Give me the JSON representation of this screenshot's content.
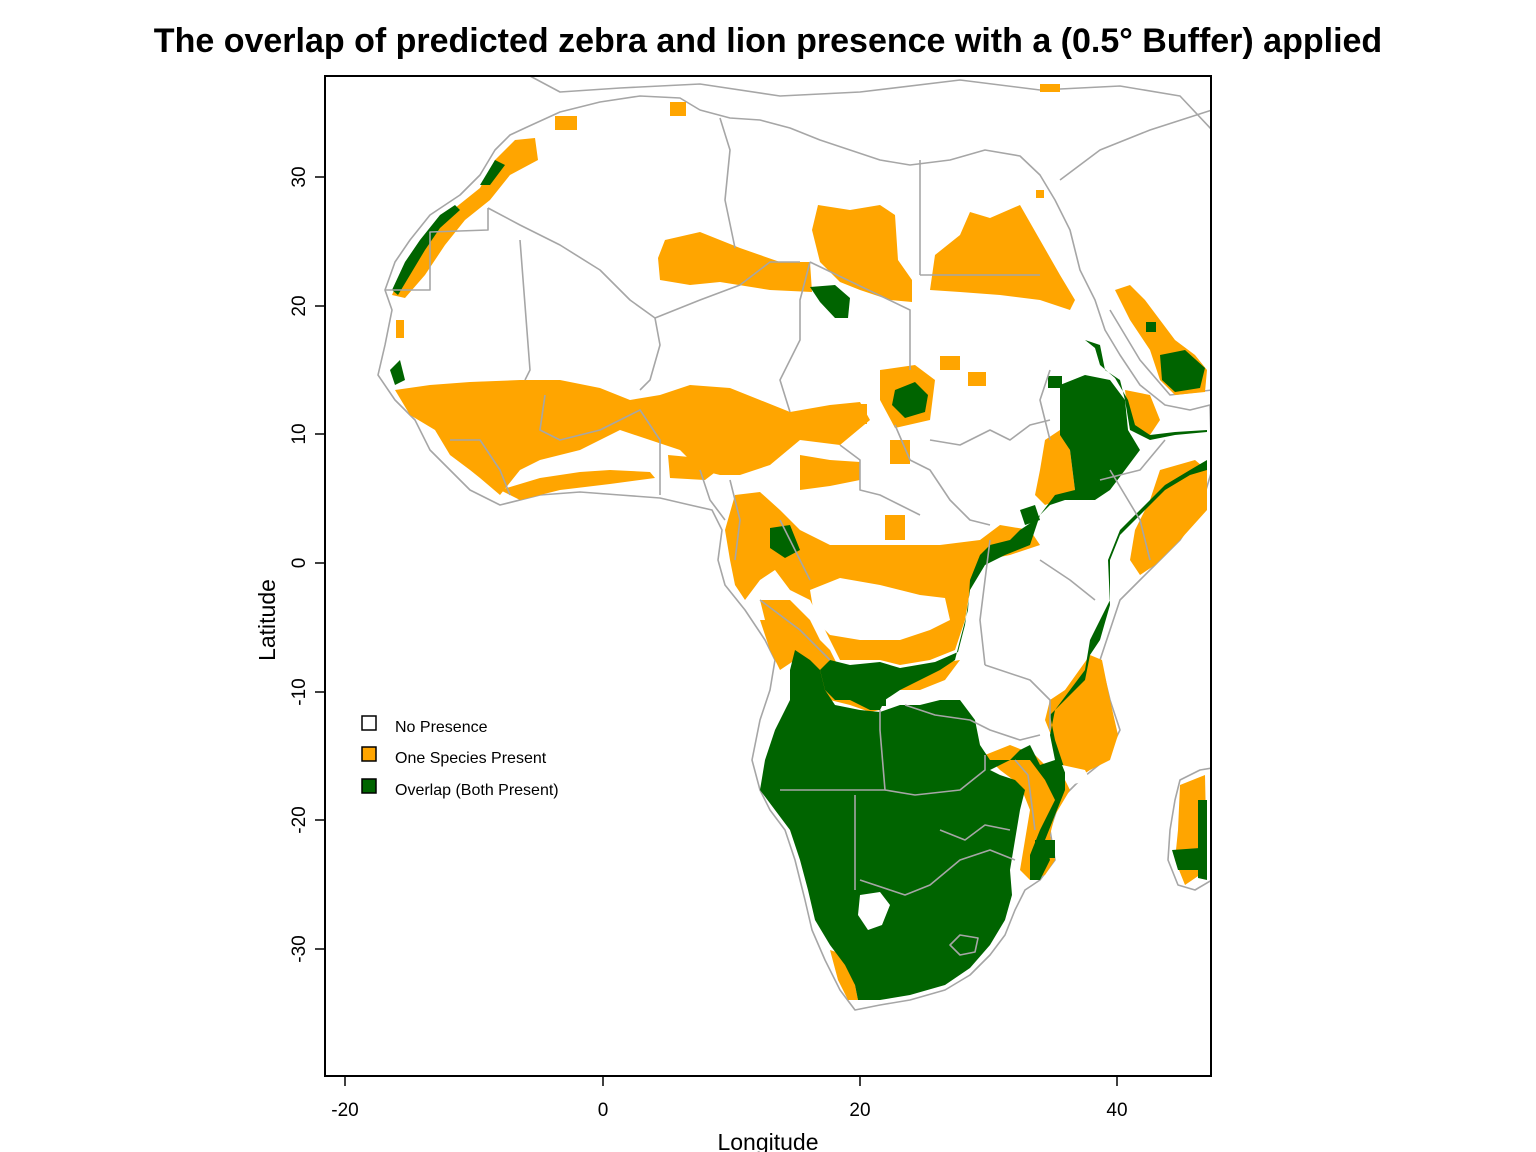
{
  "title": "The overlap of predicted zebra and lion presence with a (0.5° Buffer) applied",
  "axes": {
    "xlabel": "Longitude",
    "ylabel": "Latitude",
    "xticks": [
      "-20",
      "0",
      "20",
      "40"
    ],
    "yticks": [
      "30",
      "20",
      "10",
      "0",
      "-10",
      "-20",
      "-30"
    ]
  },
  "legend": {
    "items": [
      {
        "label": "No Presence",
        "color": "#ffffff"
      },
      {
        "label": "One Species Present",
        "color": "#ffa500"
      },
      {
        "label": "Overlap (Both Present)",
        "color": "#006400"
      }
    ]
  },
  "colors": {
    "one_species": "#ffa500",
    "overlap": "#006400",
    "border": "#a6a6a6"
  },
  "chart_data": {
    "type": "heatmap",
    "title": "The overlap of predicted zebra and lion presence with a (0.5° Buffer) applied",
    "xlabel": "Longitude",
    "ylabel": "Latitude",
    "xlim": [
      -21.5,
      47.3
    ],
    "ylim": [
      -40,
      38
    ],
    "categories": [
      "No Presence",
      "One Species Present",
      "Overlap (Both Present)"
    ],
    "region": "Africa"
  }
}
